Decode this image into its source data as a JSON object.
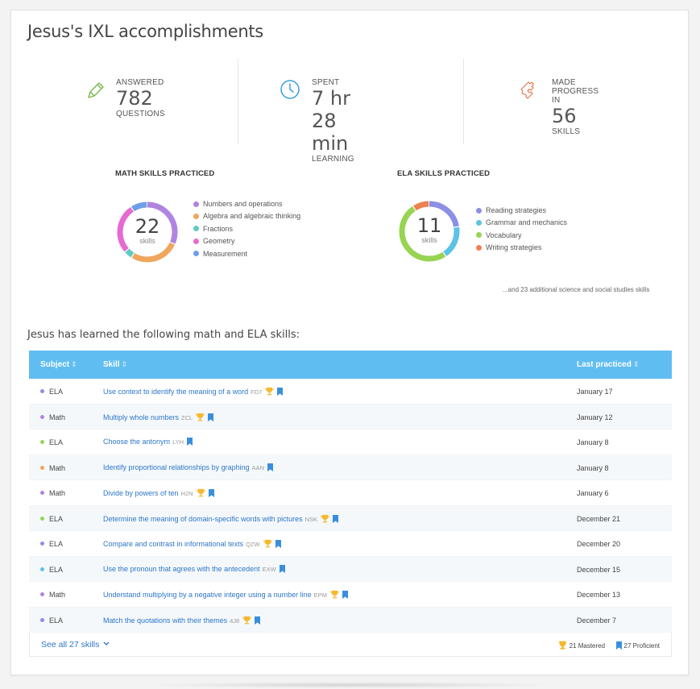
{
  "page": {
    "title": "Jesus's IXL accomplishments"
  },
  "stats": {
    "answered": {
      "pre": "ANSWERED",
      "value": "782",
      "post": "QUESTIONS",
      "icon": "pencil-icon",
      "color": "#7ab648"
    },
    "spent": {
      "pre": "SPENT",
      "value": "7 hr 28 min",
      "post": "LEARNING",
      "icon": "clock-icon",
      "color": "#3a9fdc"
    },
    "progress": {
      "pre": "MADE PROGRESS IN",
      "value": "56",
      "post": "SKILLS",
      "icon": "puzzle-icon",
      "color": "#e8754a"
    }
  },
  "math": {
    "title": "MATH SKILLS PRACTICED",
    "count": "22",
    "unit": "skills",
    "legend": [
      {
        "label": "Numbers and operations",
        "color": "#b084e0"
      },
      {
        "label": "Algebra and algebraic thinking",
        "color": "#f0a65c"
      },
      {
        "label": "Fractions",
        "color": "#5fcbc3"
      },
      {
        "label": "Geometry",
        "color": "#e66bd1"
      },
      {
        "label": "Measurement",
        "color": "#6e9ee8"
      }
    ],
    "segments": [
      {
        "color": "#b084e0",
        "value": 7
      },
      {
        "color": "#f0a65c",
        "value": 6
      },
      {
        "color": "#5fcbc3",
        "value": 1
      },
      {
        "color": "#e66bd1",
        "value": 6
      },
      {
        "color": "#6e9ee8",
        "value": 2
      }
    ]
  },
  "ela": {
    "title": "ELA SKILLS PRACTICED",
    "count": "11",
    "unit": "skills",
    "legend": [
      {
        "label": "Reading strategies",
        "color": "#8b8fe6"
      },
      {
        "label": "Grammar and mechanics",
        "color": "#5cc3e6"
      },
      {
        "label": "Vocabulary",
        "color": "#97d453"
      },
      {
        "label": "Writing strategies",
        "color": "#ef8050"
      }
    ],
    "segments": [
      {
        "color": "#8b8fe6",
        "value": 2.5
      },
      {
        "color": "#5cc3e6",
        "value": 2
      },
      {
        "color": "#97d453",
        "value": 5.5
      },
      {
        "color": "#ef8050",
        "value": 1
      }
    ]
  },
  "additional": "...and 23 additional science and social studies skills",
  "learned_heading": "Jesus has learned the following math and ELA skills:",
  "table": {
    "headers": {
      "subject": "Subject",
      "skill": "Skill",
      "last": "Last practiced"
    },
    "rows": [
      {
        "subject": "ELA",
        "dot": "#8b8fe6",
        "skill": "Use context to identify the meaning of a word",
        "code": "FD7",
        "trophy": true,
        "ribbon": true,
        "date": "January 17"
      },
      {
        "subject": "Math",
        "dot": "#b084e0",
        "skill": "Multiply whole numbers",
        "code": "ZCL",
        "trophy": true,
        "ribbon": true,
        "date": "January 12"
      },
      {
        "subject": "ELA",
        "dot": "#97d453",
        "skill": "Choose the antonym",
        "code": "LYH",
        "trophy": false,
        "ribbon": true,
        "date": "January 8"
      },
      {
        "subject": "Math",
        "dot": "#f0a65c",
        "skill": "Identify proportional relationships by graphing",
        "code": "AAN",
        "trophy": false,
        "ribbon": true,
        "date": "January 8"
      },
      {
        "subject": "Math",
        "dot": "#b084e0",
        "skill": "Divide by powers of ten",
        "code": "H2N",
        "trophy": true,
        "ribbon": true,
        "date": "January 6"
      },
      {
        "subject": "ELA",
        "dot": "#97d453",
        "skill": "Determine the meaning of domain-specific words with pictures",
        "code": "NSK",
        "trophy": true,
        "ribbon": true,
        "date": "December 21"
      },
      {
        "subject": "ELA",
        "dot": "#8b8fe6",
        "skill": "Compare and contrast in informational texts",
        "code": "QZW",
        "trophy": true,
        "ribbon": true,
        "date": "December 20"
      },
      {
        "subject": "ELA",
        "dot": "#5cc3e6",
        "skill": "Use the pronoun that agrees with the antecedent",
        "code": "EXW",
        "trophy": false,
        "ribbon": true,
        "date": "December 15"
      },
      {
        "subject": "Math",
        "dot": "#b084e0",
        "skill": "Understand multiplying by a negative integer using a number line",
        "code": "EPM",
        "trophy": true,
        "ribbon": true,
        "date": "December 13"
      },
      {
        "subject": "ELA",
        "dot": "#8b8fe6",
        "skill": "Match the quotations with their themes",
        "code": "4J8",
        "trophy": true,
        "ribbon": true,
        "date": "December 7"
      }
    ],
    "footer": {
      "see_all": "See all 27 skills",
      "mastered": "21 Mastered",
      "proficient": "27 Proficient"
    }
  },
  "icons": {
    "trophy": "trophy-icon",
    "ribbon": "ribbon-icon",
    "chevron": "chevron-down-icon"
  },
  "colors": {
    "header": "#60bdf1",
    "link": "#2d76c7",
    "trophy": "#f5b82e",
    "ribbon": "#3a8fdc"
  }
}
